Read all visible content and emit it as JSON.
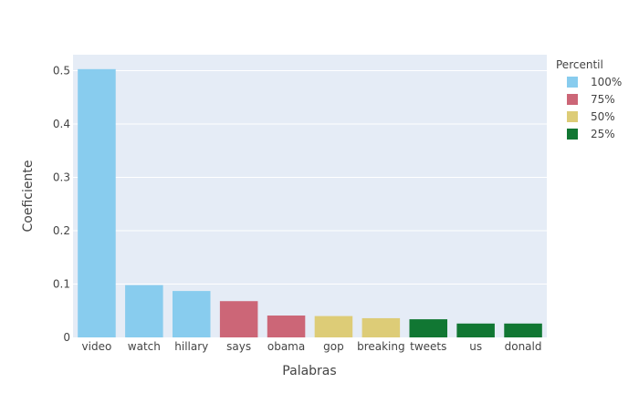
{
  "chart_data": {
    "type": "bar",
    "categories": [
      "video",
      "watch",
      "hillary",
      "says",
      "obama",
      "gop",
      "breaking",
      "tweets",
      "us",
      "donald"
    ],
    "values": [
      0.503,
      0.098,
      0.087,
      0.068,
      0.041,
      0.04,
      0.036,
      0.034,
      0.026,
      0.026
    ],
    "groups": [
      "100%",
      "100%",
      "100%",
      "75%",
      "75%",
      "50%",
      "50%",
      "25%",
      "25%",
      "25%"
    ],
    "title": "",
    "xlabel": "Palabras",
    "ylabel": "Coeficiente",
    "ylim": [
      0,
      0.53
    ],
    "yticks": [
      0,
      0.1,
      0.2,
      0.3,
      0.4,
      0.5
    ],
    "ytick_labels": [
      "0",
      "0.1",
      "0.2",
      "0.3",
      "0.4",
      "0.5"
    ],
    "grid": true,
    "legend": {
      "title": "Percentil",
      "placement": "top-right",
      "entries": [
        {
          "name": "100%",
          "color": "#88CCEE"
        },
        {
          "name": "75%",
          "color": "#CC6677"
        },
        {
          "name": "50%",
          "color": "#DDCC77"
        },
        {
          "name": "25%",
          "color": "#117733"
        }
      ]
    },
    "plot_background": "#E5ECF6"
  }
}
